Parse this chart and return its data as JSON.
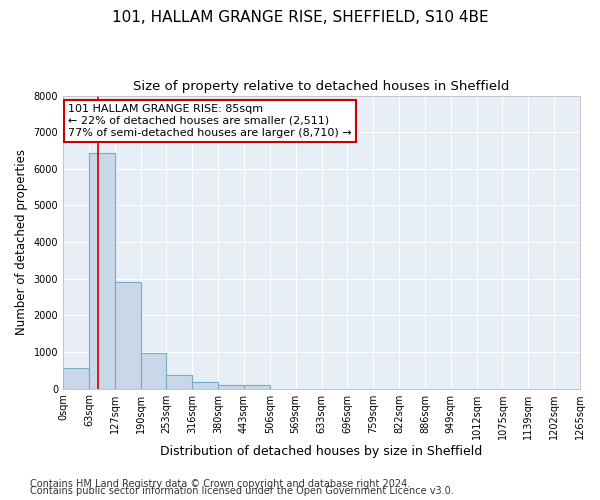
{
  "title1": "101, HALLAM GRANGE RISE, SHEFFIELD, S10 4BE",
  "title2": "Size of property relative to detached houses in Sheffield",
  "xlabel": "Distribution of detached houses by size in Sheffield",
  "ylabel": "Number of detached properties",
  "bar_values": [
    570,
    6430,
    2920,
    980,
    360,
    170,
    110,
    90,
    0,
    0,
    0,
    0,
    0,
    0,
    0,
    0,
    0,
    0,
    0,
    0
  ],
  "bar_labels": [
    "0sqm",
    "63sqm",
    "127sqm",
    "190sqm",
    "253sqm",
    "316sqm",
    "380sqm",
    "443sqm",
    "506sqm",
    "569sqm",
    "633sqm",
    "696sqm",
    "759sqm",
    "822sqm",
    "886sqm",
    "949sqm",
    "1012sqm",
    "1075sqm",
    "1139sqm",
    "1202sqm",
    "1265sqm"
  ],
  "bar_color": "#c8d8e8",
  "bar_edgecolor": "#7aaac8",
  "bar_linewidth": 0.8,
  "vline_x": 1.35,
  "vline_color": "#cc0000",
  "vline_linewidth": 1.2,
  "ylim": [
    0,
    8000
  ],
  "yticks": [
    0,
    1000,
    2000,
    3000,
    4000,
    5000,
    6000,
    7000,
    8000
  ],
  "annotation_title": "101 HALLAM GRANGE RISE: 85sqm",
  "annotation_line1": "← 22% of detached houses are smaller (2,511)",
  "annotation_line2": "77% of semi-detached houses are larger (8,710) →",
  "annotation_box_facecolor": "#ffffff",
  "annotation_box_edgecolor": "#cc0000",
  "footnote1": "Contains HM Land Registry data © Crown copyright and database right 2024.",
  "footnote2": "Contains public sector information licensed under the Open Government Licence v3.0.",
  "fig_facecolor": "#ffffff",
  "axes_facecolor": "#e8eef6",
  "grid_color": "#ffffff",
  "title1_fontsize": 11,
  "title2_fontsize": 9.5,
  "xlabel_fontsize": 9,
  "ylabel_fontsize": 8.5,
  "tick_fontsize": 7,
  "footnote_fontsize": 7,
  "annotation_fontsize": 8
}
